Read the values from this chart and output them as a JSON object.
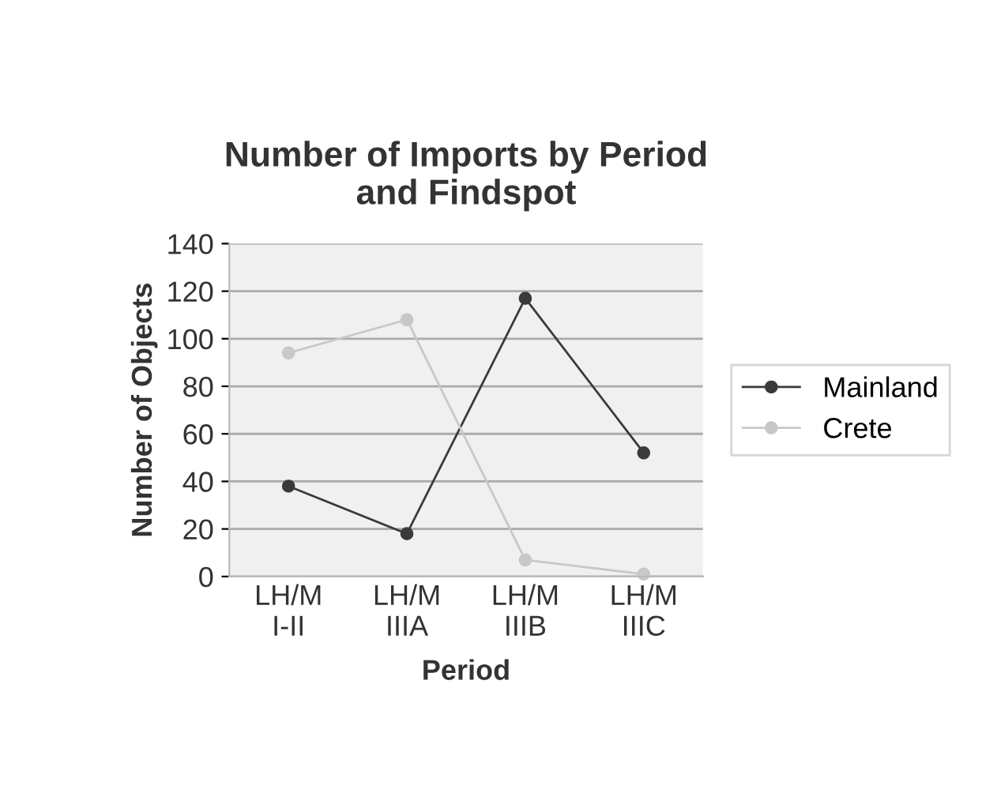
{
  "chart_data": {
    "type": "line",
    "title": "Number of Imports by Period\nand Findspot",
    "xlabel": "Period",
    "ylabel": "Number of Objects",
    "categories": [
      "LH/M\nI-II",
      "LH/M\nIIIA",
      "LH/M\nIIIB",
      "LH/M\nIIIC"
    ],
    "series": [
      {
        "name": "Mainland",
        "color": "#3a3a3a",
        "values": [
          38,
          18,
          117,
          52
        ]
      },
      {
        "name": "Crete",
        "color": "#c8c8c8",
        "values": [
          94,
          108,
          7,
          1
        ]
      }
    ],
    "ylim": [
      0,
      140
    ],
    "yticks": [
      0,
      20,
      40,
      60,
      80,
      100,
      120,
      140
    ],
    "grid": "y",
    "legend": "right",
    "marker": "circle",
    "line_style": "solid"
  }
}
